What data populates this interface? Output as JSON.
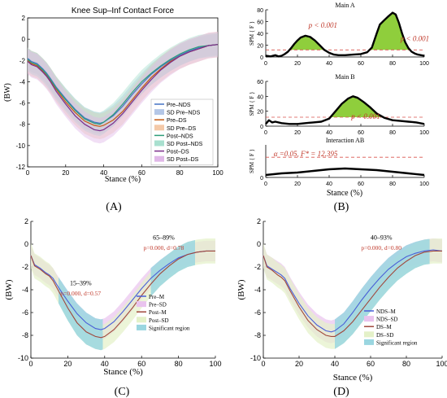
{
  "figure": {
    "panel_labels": [
      "(A)",
      "(B)",
      "(C)",
      "(D)"
    ]
  },
  "chart_data": [
    {
      "id": "A",
      "type": "line",
      "title": "Knee Sup–Inf Contact Force",
      "xlabel": "Stance (%)",
      "ylabel": "(BW)",
      "xlim": [
        0,
        100
      ],
      "ylim": [
        -12,
        2
      ],
      "xticks": [
        "0",
        "20",
        "40",
        "60",
        "80",
        "100"
      ],
      "yticks": [
        "2",
        "0",
        "-2",
        "-4",
        "-6",
        "-8",
        "-10",
        "-12"
      ],
      "x": [
        0,
        2,
        5,
        8,
        10,
        12,
        15,
        20,
        25,
        30,
        35,
        38,
        40,
        45,
        50,
        55,
        60,
        65,
        70,
        75,
        80,
        85,
        90,
        95,
        100
      ],
      "series": [
        {
          "name": "Pre–NDS",
          "color": "#4472c4",
          "sd": 1.0,
          "values": [
            -1.8,
            -2.1,
            -2.3,
            -2.8,
            -3.2,
            -3.7,
            -4.5,
            -5.6,
            -6.6,
            -7.4,
            -7.8,
            -7.9,
            -7.8,
            -7.2,
            -6.3,
            -5.2,
            -4.2,
            -3.3,
            -2.6,
            -2.0,
            -1.5,
            -1.1,
            -0.8,
            -0.6,
            -0.5
          ]
        },
        {
          "name": "Pre–DS",
          "color": "#c55a11",
          "sd": 1.2,
          "values": [
            -2.0,
            -2.3,
            -2.5,
            -3.0,
            -3.4,
            -3.9,
            -4.7,
            -5.9,
            -6.9,
            -7.7,
            -8.1,
            -8.2,
            -8.1,
            -7.6,
            -6.8,
            -5.7,
            -4.6,
            -3.6,
            -2.8,
            -2.1,
            -1.6,
            -1.2,
            -0.9,
            -0.6,
            -0.5
          ]
        },
        {
          "name": "Post–NDS",
          "color": "#2e9e7a",
          "sd": 1.1,
          "values": [
            -1.9,
            -2.2,
            -2.4,
            -2.9,
            -3.3,
            -3.8,
            -4.6,
            -5.7,
            -6.7,
            -7.5,
            -7.9,
            -8.0,
            -7.8,
            -7.1,
            -6.1,
            -5.0,
            -4.0,
            -3.2,
            -2.5,
            -1.9,
            -1.4,
            -1.0,
            -0.7,
            -0.6,
            -0.5
          ]
        },
        {
          "name": "Post–DS",
          "color": "#7b2d8b",
          "sd": 1.2,
          "values": [
            -2.1,
            -2.4,
            -2.6,
            -3.1,
            -3.5,
            -4.0,
            -4.9,
            -6.1,
            -7.2,
            -8.0,
            -8.5,
            -8.6,
            -8.5,
            -7.9,
            -7.0,
            -5.9,
            -4.8,
            -3.8,
            -2.9,
            -2.2,
            -1.6,
            -1.2,
            -0.9,
            -0.6,
            -0.5
          ]
        }
      ],
      "legend": {
        "placement": "right-middle",
        "entries": [
          {
            "label": "Pre–NDS",
            "kind": "line",
            "color": "#4472c4"
          },
          {
            "label": "SD Pre–NDS",
            "kind": "patch",
            "color": "#b4c7e7"
          },
          {
            "label": "Pre–DS",
            "kind": "line",
            "color": "#c55a11"
          },
          {
            "label": "SD Pre–DS",
            "kind": "patch",
            "color": "#f4c9a8"
          },
          {
            "label": "Post–NDS",
            "kind": "line",
            "color": "#2e9e7a"
          },
          {
            "label": "SD Post–NDS",
            "kind": "patch",
            "color": "#a9e0cf"
          },
          {
            "label": "Post–DS",
            "kind": "line",
            "color": "#7b2d8b"
          },
          {
            "label": "SD Post–DS",
            "kind": "patch",
            "color": "#e0b8e8"
          }
        ]
      }
    },
    {
      "id": "B",
      "type": "line",
      "subplots": [
        {
          "title": "Main A",
          "ylabel": "SPM { F }",
          "ylim": [
            0,
            80
          ],
          "yticks": [
            "0",
            "20",
            "40",
            "60",
            "80"
          ],
          "threshold": 12,
          "x": [
            0,
            3,
            6,
            8,
            10,
            12,
            14,
            16,
            18,
            20,
            22,
            25,
            28,
            31,
            34,
            37,
            40,
            43,
            46,
            50,
            55,
            60,
            64,
            67,
            70,
            72,
            75,
            77,
            80,
            82,
            84,
            86,
            88,
            90,
            92,
            94,
            96,
            98,
            100
          ],
          "values": [
            2,
            1,
            3,
            1,
            2,
            5,
            9,
            15,
            22,
            28,
            33,
            36,
            34,
            28,
            20,
            12,
            7,
            4,
            3,
            3,
            4,
            5,
            8,
            16,
            40,
            55,
            63,
            68,
            75,
            72,
            58,
            40,
            25,
            15,
            9,
            6,
            4,
            3,
            2
          ],
          "annotations": [
            {
              "text": "p < 0.001",
              "x": 27,
              "y": 50
            },
            {
              "text": "p < 0.001",
              "x": 85,
              "y": 27
            }
          ]
        },
        {
          "title": "Main B",
          "ylabel": "SPM { F }",
          "ylim": [
            0,
            60
          ],
          "yticks": [
            "0",
            "20",
            "40",
            "60"
          ],
          "threshold": 12,
          "x": [
            0,
            2,
            4,
            6,
            10,
            15,
            20,
            25,
            30,
            35,
            40,
            44,
            48,
            52,
            55,
            58,
            62,
            66,
            70,
            75,
            80,
            85,
            90,
            95,
            100
          ],
          "values": [
            3,
            8,
            5,
            6,
            4,
            3,
            3,
            4,
            5,
            6,
            10,
            20,
            30,
            37,
            40,
            38,
            32,
            25,
            17,
            11,
            8,
            7,
            6,
            5,
            3
          ],
          "annotations": [
            {
              "text": "p < 0.001",
              "x": 54,
              "y": 10
            }
          ]
        },
        {
          "title": "Interaction AB",
          "ylabel": "SPM { F }",
          "ylim": [
            0,
            20
          ],
          "yticks": [
            "0"
          ],
          "threshold": 12.395,
          "x": [
            0,
            10,
            20,
            30,
            40,
            50,
            60,
            70,
            80,
            90,
            100
          ],
          "values": [
            1.5,
            2.5,
            3,
            4,
            5,
            5.5,
            5,
            4.5,
            3.5,
            2.5,
            1.5
          ],
          "annotations": [
            {
              "text": "α =0.05,    F* = 12.395",
              "x": 5,
              "y": 13
            }
          ]
        }
      ],
      "xlabel": "Stance (%)",
      "xlim": [
        0,
        100
      ],
      "xticks": [
        "0",
        "20",
        "40",
        "60",
        "80",
        "100"
      ]
    },
    {
      "id": "C",
      "type": "line",
      "xlabel": "Stance (%)",
      "ylabel": "(BW)",
      "xlim": [
        0,
        100
      ],
      "ylim": [
        -10,
        2
      ],
      "xticks": [
        "0",
        "20",
        "40",
        "60",
        "80",
        "100"
      ],
      "yticks": [
        "2",
        "0",
        "-2",
        "-4",
        "-6",
        "-8",
        "-10"
      ],
      "x": [
        0,
        2,
        5,
        8,
        10,
        12,
        15,
        20,
        25,
        30,
        35,
        38,
        40,
        45,
        50,
        55,
        60,
        65,
        70,
        75,
        80,
        85,
        90,
        95,
        100
      ],
      "series": [
        {
          "name": "Pre–M",
          "color": "#4a5fd8",
          "sd": 0.9,
          "values": [
            -1.0,
            -1.8,
            -2.1,
            -2.5,
            -2.7,
            -3.0,
            -3.8,
            -5.0,
            -6.1,
            -6.9,
            -7.4,
            -7.5,
            -7.4,
            -6.8,
            -5.9,
            -4.9,
            -3.9,
            -3.0,
            -2.3,
            -1.7,
            -1.2,
            -0.9,
            -0.7,
            -0.6,
            -0.6
          ]
        },
        {
          "name": "Post–M",
          "color": "#a0483c",
          "sd": 1.1,
          "values": [
            -1.0,
            -1.9,
            -2.2,
            -2.6,
            -2.8,
            -3.2,
            -4.1,
            -5.6,
            -6.9,
            -7.7,
            -8.1,
            -8.2,
            -8.1,
            -7.5,
            -6.6,
            -5.6,
            -4.5,
            -3.5,
            -2.6,
            -1.9,
            -1.3,
            -0.9,
            -0.7,
            -0.6,
            -0.6
          ]
        }
      ],
      "significant_regions": [
        {
          "from": 15,
          "to": 39,
          "label": "15–39%",
          "stats": "p=0.000, d=0.57"
        },
        {
          "from": 65,
          "to": 89,
          "label": "65–89%",
          "stats": "p=0.000, d=0.78"
        }
      ],
      "legend": {
        "placement": "right-bottom",
        "entries": [
          {
            "label": "Pre–M",
            "kind": "line",
            "color": "#4a5fd8"
          },
          {
            "label": "Pre–SD",
            "kind": "patch",
            "color": "#e9c3ee"
          },
          {
            "label": "Post–M",
            "kind": "line",
            "color": "#a0483c"
          },
          {
            "label": "Post–SD",
            "kind": "patch",
            "color": "#e4f1c8"
          },
          {
            "label": "Significant region",
            "kind": "patch",
            "color": "#9ad6e0"
          }
        ]
      }
    },
    {
      "id": "D",
      "type": "line",
      "xlabel": "Stance (%)",
      "ylabel": "(BW)",
      "xlim": [
        0,
        100
      ],
      "ylim": [
        -10,
        2
      ],
      "xticks": [
        "0",
        "20",
        "40",
        "60",
        "80",
        "100"
      ],
      "yticks": [
        "2",
        "0",
        "-2",
        "-4",
        "-6",
        "-8",
        "-10"
      ],
      "x": [
        0,
        2,
        5,
        8,
        10,
        12,
        15,
        20,
        25,
        30,
        35,
        38,
        40,
        45,
        50,
        55,
        60,
        65,
        70,
        75,
        80,
        85,
        90,
        95,
        100
      ],
      "series": [
        {
          "name": "NDS–M",
          "color": "#4a5fd8",
          "sd": 1.0,
          "values": [
            -1.0,
            -1.9,
            -2.2,
            -2.5,
            -2.7,
            -3.0,
            -3.9,
            -5.2,
            -6.3,
            -7.1,
            -7.6,
            -7.7,
            -7.6,
            -7.0,
            -6.0,
            -4.9,
            -3.9,
            -3.0,
            -2.2,
            -1.6,
            -1.1,
            -0.8,
            -0.6,
            -0.5,
            -0.6
          ]
        },
        {
          "name": "DS–M",
          "color": "#a0483c",
          "sd": 1.1,
          "values": [
            -1.0,
            -2.0,
            -2.3,
            -2.7,
            -2.9,
            -3.2,
            -4.1,
            -5.5,
            -6.7,
            -7.5,
            -8.0,
            -8.1,
            -8.1,
            -7.6,
            -6.8,
            -5.8,
            -4.8,
            -3.8,
            -2.9,
            -2.1,
            -1.5,
            -1.0,
            -0.7,
            -0.6,
            -0.6
          ]
        }
      ],
      "significant_regions": [
        {
          "from": 40,
          "to": 93,
          "label": "40–93%",
          "stats": "p=0.000, d=0.80"
        }
      ],
      "legend": {
        "placement": "right-bottom",
        "entries": [
          {
            "label": "NDS–M",
            "kind": "line",
            "color": "#4a5fd8"
          },
          {
            "label": "NDS–SD",
            "kind": "patch",
            "color": "#e9c3ee"
          },
          {
            "label": "DS–M",
            "kind": "line",
            "color": "#a0483c"
          },
          {
            "label": "DS–SD",
            "kind": "patch",
            "color": "#e4f1c8"
          },
          {
            "label": "Significant region",
            "kind": "patch",
            "color": "#9ad6e0"
          }
        ]
      }
    }
  ]
}
